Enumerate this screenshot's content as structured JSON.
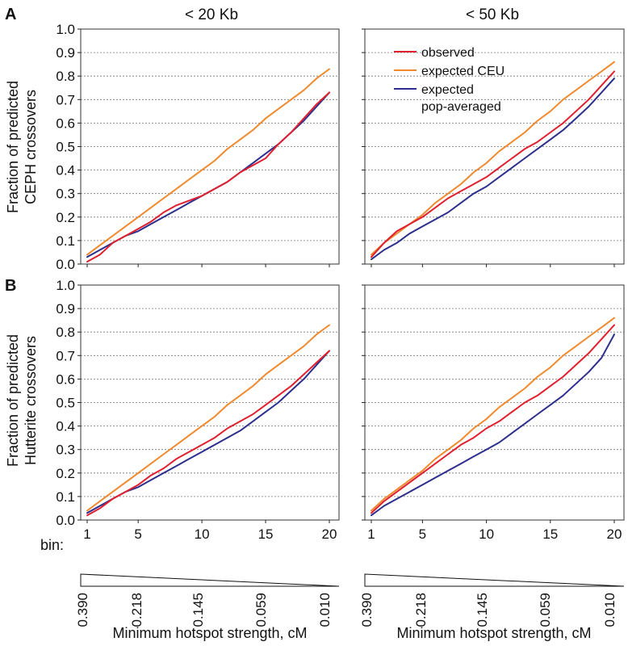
{
  "figure": {
    "panel_letters": [
      "A",
      "B"
    ],
    "column_titles": [
      "< 20 Kb",
      "< 50 Kb"
    ],
    "row_ylabels": [
      [
        "Fraction of predicted",
        "CEPH crossovers"
      ],
      [
        "Fraction of predicted",
        "Hutterite  crossovers"
      ]
    ],
    "bin_label": "bin:",
    "xlabel": "Minimum hotspot strength, cM",
    "strength_ticks": [
      "0.390",
      "0.218",
      "0.145",
      "0.059",
      "0.010"
    ]
  },
  "colors": {
    "observed": "#e0202e",
    "expected_ceu": "#ef8a2e",
    "expected_pop": "#2c2f8c"
  },
  "chart_data": [
    {
      "type": "line",
      "panel": "A",
      "column_title": "< 20 Kb",
      "ylabel": "Fraction of predicted CEPH crossovers",
      "xlim": [
        1,
        20
      ],
      "ylim": [
        0,
        1
      ],
      "xticks": [
        1,
        5,
        10,
        15,
        20
      ],
      "yticks": [
        "0.0",
        "0.1",
        "0.2",
        "0.3",
        "0.4",
        "0.5",
        "0.6",
        "0.7",
        "0.8",
        "0.9",
        "1.0"
      ],
      "x": [
        1,
        2,
        3,
        4,
        5,
        6,
        7,
        8,
        9,
        10,
        11,
        12,
        13,
        14,
        15,
        16,
        17,
        18,
        19,
        20
      ],
      "series": [
        {
          "key": "observed",
          "values": [
            0.01,
            0.04,
            0.09,
            0.12,
            0.15,
            0.18,
            0.22,
            0.25,
            0.27,
            0.29,
            0.32,
            0.35,
            0.39,
            0.42,
            0.45,
            0.51,
            0.56,
            0.62,
            0.68,
            0.73
          ]
        },
        {
          "key": "expected_ceu",
          "values": [
            0.04,
            0.08,
            0.12,
            0.16,
            0.2,
            0.24,
            0.28,
            0.32,
            0.36,
            0.4,
            0.44,
            0.49,
            0.53,
            0.57,
            0.62,
            0.66,
            0.7,
            0.74,
            0.79,
            0.83
          ]
        },
        {
          "key": "expected_pop",
          "values": [
            0.03,
            0.06,
            0.09,
            0.12,
            0.14,
            0.17,
            0.2,
            0.23,
            0.26,
            0.29,
            0.32,
            0.35,
            0.39,
            0.43,
            0.47,
            0.51,
            0.56,
            0.61,
            0.67,
            0.73
          ]
        }
      ]
    },
    {
      "type": "line",
      "panel": "A",
      "column_title": "< 50 Kb",
      "xlim": [
        1,
        20
      ],
      "ylim": [
        0,
        1
      ],
      "xticks": [
        1,
        5,
        10,
        15,
        20
      ],
      "x": [
        1,
        2,
        3,
        4,
        5,
        6,
        7,
        8,
        9,
        10,
        11,
        12,
        13,
        14,
        15,
        16,
        17,
        18,
        19,
        20
      ],
      "legend": {
        "placement": "top-right",
        "entries": [
          {
            "key": "observed",
            "label": [
              "observed"
            ]
          },
          {
            "key": "expected_ceu",
            "label": [
              "expected CEU"
            ]
          },
          {
            "key": "expected_pop",
            "label": [
              "expected",
              "pop-averaged"
            ]
          }
        ]
      },
      "series": [
        {
          "key": "observed",
          "values": [
            0.03,
            0.09,
            0.14,
            0.17,
            0.2,
            0.24,
            0.28,
            0.31,
            0.34,
            0.37,
            0.41,
            0.45,
            0.49,
            0.52,
            0.56,
            0.6,
            0.65,
            0.7,
            0.76,
            0.82
          ]
        },
        {
          "key": "expected_ceu",
          "values": [
            0.04,
            0.09,
            0.13,
            0.17,
            0.21,
            0.26,
            0.3,
            0.34,
            0.39,
            0.43,
            0.48,
            0.52,
            0.56,
            0.61,
            0.65,
            0.7,
            0.74,
            0.78,
            0.82,
            0.86
          ]
        },
        {
          "key": "expected_pop",
          "values": [
            0.02,
            0.06,
            0.09,
            0.13,
            0.16,
            0.19,
            0.22,
            0.26,
            0.3,
            0.33,
            0.37,
            0.41,
            0.45,
            0.49,
            0.53,
            0.57,
            0.62,
            0.67,
            0.73,
            0.79
          ]
        }
      ]
    },
    {
      "type": "line",
      "panel": "B",
      "column_title": "< 20 Kb",
      "ylabel": "Fraction of predicted Hutterite crossovers",
      "xlim": [
        1,
        20
      ],
      "ylim": [
        0,
        1
      ],
      "xticks": [
        1,
        5,
        10,
        15,
        20
      ],
      "yticks": [
        "0.0",
        "0.1",
        "0.2",
        "0.3",
        "0.4",
        "0.5",
        "0.6",
        "0.7",
        "0.8",
        "0.9",
        "1.0"
      ],
      "x": [
        1,
        2,
        3,
        4,
        5,
        6,
        7,
        8,
        9,
        10,
        11,
        12,
        13,
        14,
        15,
        16,
        17,
        18,
        19,
        20
      ],
      "series": [
        {
          "key": "observed",
          "values": [
            0.02,
            0.05,
            0.09,
            0.12,
            0.15,
            0.19,
            0.22,
            0.26,
            0.29,
            0.32,
            0.35,
            0.39,
            0.42,
            0.45,
            0.49,
            0.53,
            0.57,
            0.62,
            0.67,
            0.72
          ]
        },
        {
          "key": "expected_ceu",
          "values": [
            0.04,
            0.08,
            0.12,
            0.16,
            0.2,
            0.24,
            0.28,
            0.32,
            0.36,
            0.4,
            0.44,
            0.49,
            0.53,
            0.57,
            0.62,
            0.66,
            0.7,
            0.74,
            0.79,
            0.83
          ]
        },
        {
          "key": "expected_pop",
          "values": [
            0.03,
            0.06,
            0.09,
            0.12,
            0.14,
            0.17,
            0.2,
            0.23,
            0.26,
            0.29,
            0.32,
            0.35,
            0.38,
            0.42,
            0.46,
            0.5,
            0.55,
            0.6,
            0.66,
            0.72
          ]
        }
      ]
    },
    {
      "type": "line",
      "panel": "B",
      "column_title": "< 50 Kb",
      "xlim": [
        1,
        20
      ],
      "ylim": [
        0,
        1
      ],
      "xticks": [
        1,
        5,
        10,
        15,
        20
      ],
      "x": [
        1,
        2,
        3,
        4,
        5,
        6,
        7,
        8,
        9,
        10,
        11,
        12,
        13,
        14,
        15,
        16,
        17,
        18,
        19,
        20
      ],
      "series": [
        {
          "key": "observed",
          "values": [
            0.03,
            0.08,
            0.12,
            0.16,
            0.2,
            0.24,
            0.28,
            0.32,
            0.35,
            0.39,
            0.42,
            0.46,
            0.5,
            0.53,
            0.57,
            0.61,
            0.66,
            0.71,
            0.77,
            0.83
          ]
        },
        {
          "key": "expected_ceu",
          "values": [
            0.04,
            0.09,
            0.13,
            0.17,
            0.21,
            0.26,
            0.3,
            0.34,
            0.39,
            0.43,
            0.48,
            0.52,
            0.56,
            0.61,
            0.65,
            0.7,
            0.74,
            0.78,
            0.82,
            0.86
          ]
        },
        {
          "key": "expected_pop",
          "values": [
            0.02,
            0.06,
            0.09,
            0.12,
            0.15,
            0.18,
            0.21,
            0.24,
            0.27,
            0.3,
            0.33,
            0.37,
            0.41,
            0.45,
            0.49,
            0.53,
            0.58,
            0.63,
            0.69,
            0.79
          ]
        }
      ]
    }
  ]
}
